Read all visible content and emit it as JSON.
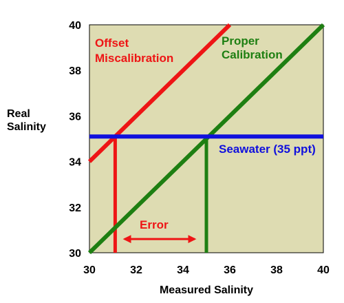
{
  "chart_data": {
    "type": "line",
    "xlabel": "Measured Salinity",
    "ylabel": [
      "Real",
      "Salinity"
    ],
    "xlim": [
      30,
      40
    ],
    "ylim": [
      30,
      40
    ],
    "x_ticks": [
      "30",
      "32",
      "34",
      "36",
      "38",
      "40"
    ],
    "y_ticks": [
      "30",
      "32",
      "34",
      "36",
      "38",
      "40"
    ],
    "grid": false,
    "plot_background": "#dedcb2",
    "series": [
      {
        "name": "Proper Calibration",
        "color": "#1e7f12",
        "points": [
          [
            30,
            30
          ],
          [
            40,
            40
          ]
        ]
      },
      {
        "name": "Offset Miscalibration",
        "color": "#ee1515",
        "points": [
          [
            30,
            34
          ],
          [
            36,
            40
          ]
        ]
      },
      {
        "name": "Seawater (35 ppt)",
        "color": "#1010dd",
        "points": [
          [
            30,
            35.1
          ],
          [
            40,
            35.1
          ]
        ]
      }
    ],
    "drop_lines": [
      {
        "color": "#ee1515",
        "x": 31.1,
        "y_from": 30,
        "y_to": 35.1
      },
      {
        "color": "#1e7f12",
        "x": 35.0,
        "y_from": 30,
        "y_to": 35.1
      }
    ],
    "annotations": {
      "offset_label": [
        "Offset",
        "Miscalibration"
      ],
      "proper_label": [
        "Proper",
        "Calibration"
      ],
      "seawater_label": "Seawater (35 ppt)",
      "error_label": "Error"
    },
    "error_arrow": {
      "color": "#ee1515",
      "x_from": 31.5,
      "x_to": 34.5,
      "y": 30.6
    }
  }
}
